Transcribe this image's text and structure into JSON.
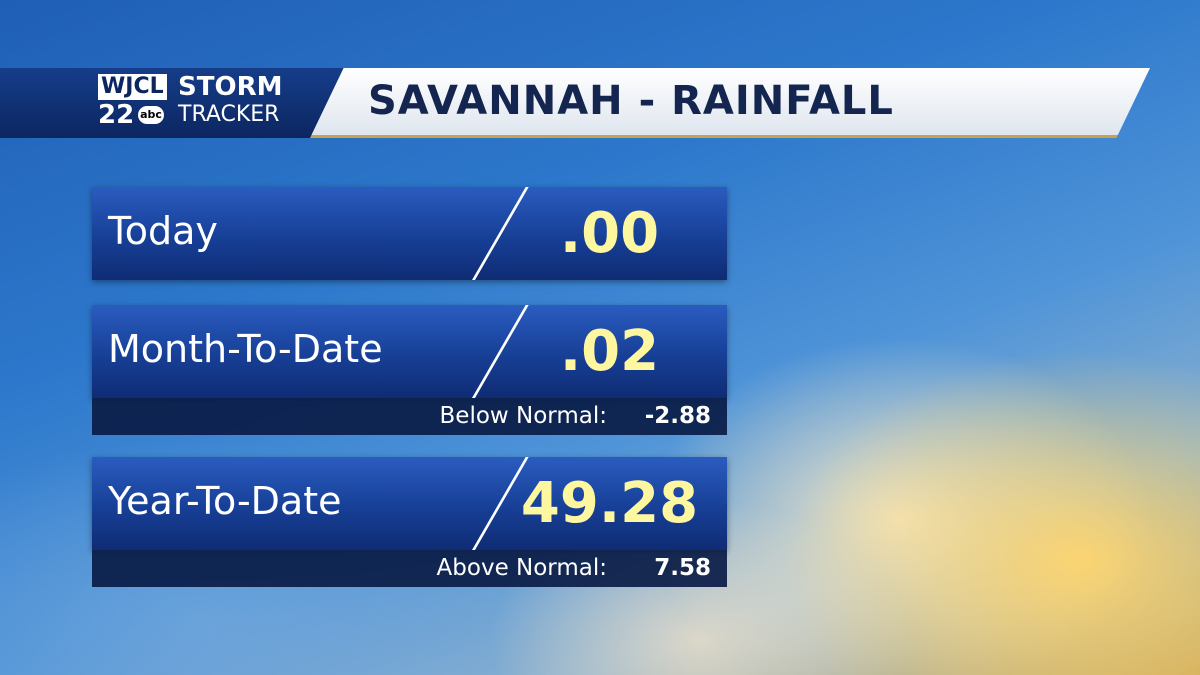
{
  "header": {
    "station": "WJCL",
    "channel": "22",
    "network": "abc",
    "brand_top": "STORM",
    "brand_bottom": "TRACKER",
    "title": "SAVANNAH - RAINFALL"
  },
  "rows": [
    {
      "label": "Today",
      "value": ".00"
    },
    {
      "label": "Month-To-Date",
      "value": ".02",
      "note_label": "Below Normal:",
      "note_value": "-2.88"
    },
    {
      "label": "Year-To-Date",
      "value": "49.28",
      "note_label": "Above Normal:",
      "note_value": "7.58"
    }
  ]
}
